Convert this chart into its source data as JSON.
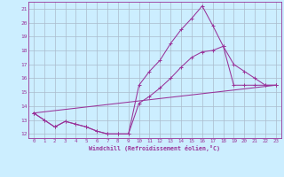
{
  "xlabel": "Windchill (Refroidissement éolien,°C)",
  "bg_color": "#cceeff",
  "line_color": "#993399",
  "grid_color": "#aabbcc",
  "xlim": [
    -0.5,
    23.5
  ],
  "ylim": [
    11.7,
    21.5
  ],
  "xticks": [
    0,
    1,
    2,
    3,
    4,
    5,
    6,
    7,
    8,
    9,
    10,
    11,
    12,
    13,
    14,
    15,
    16,
    17,
    18,
    19,
    20,
    21,
    22,
    23
  ],
  "yticks": [
    12,
    13,
    14,
    15,
    16,
    17,
    18,
    19,
    20,
    21
  ],
  "line1_x": [
    0,
    1,
    2,
    3,
    4,
    5,
    6,
    7,
    8,
    9,
    10,
    11,
    12,
    13,
    14,
    15,
    16,
    17,
    18,
    19,
    20,
    21,
    22,
    23
  ],
  "line1_y": [
    13.5,
    13.0,
    12.5,
    12.9,
    12.7,
    12.5,
    12.2,
    12.0,
    12.0,
    12.0,
    15.5,
    16.5,
    17.3,
    18.5,
    19.5,
    20.3,
    21.2,
    19.8,
    18.3,
    17.0,
    16.5,
    16.0,
    15.5,
    15.5
  ],
  "line2_x": [
    0,
    1,
    2,
    3,
    4,
    5,
    6,
    7,
    8,
    9,
    10,
    11,
    12,
    13,
    14,
    15,
    16,
    17,
    18,
    19,
    20,
    21,
    22,
    23
  ],
  "line2_y": [
    13.5,
    13.0,
    12.5,
    12.9,
    12.7,
    12.5,
    12.2,
    12.0,
    12.0,
    12.0,
    14.2,
    14.7,
    15.3,
    16.0,
    16.8,
    17.5,
    17.9,
    18.0,
    18.3,
    15.5,
    15.5,
    15.5,
    15.5,
    15.5
  ],
  "line3_x": [
    0,
    23
  ],
  "line3_y": [
    13.5,
    15.5
  ]
}
